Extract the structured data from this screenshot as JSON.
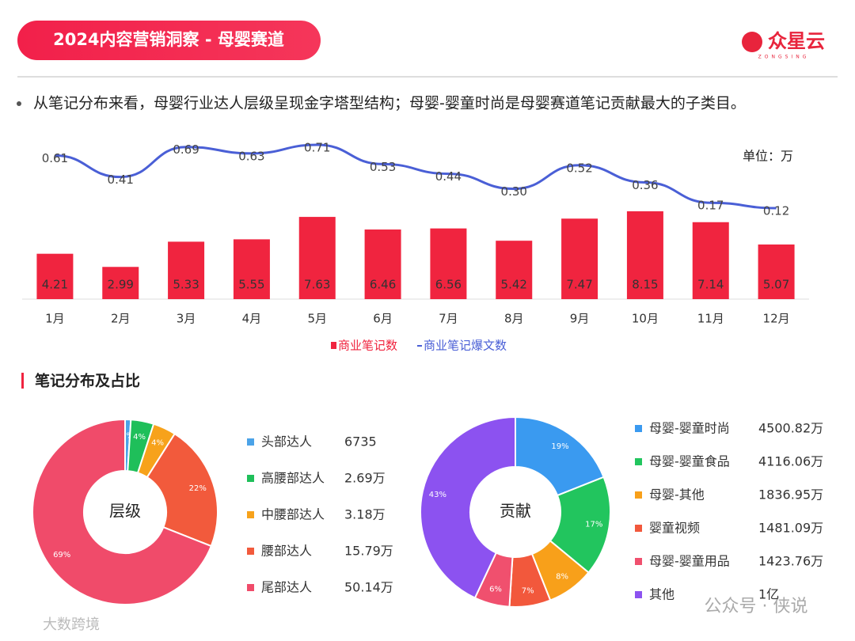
{
  "header": {
    "title": "2024内容营销洞察 - 母婴赛道",
    "logo": "众星云",
    "logo_sub": "ZONGSING"
  },
  "bullet": "从笔记分布来看，母婴行业达人层级呈现金字塔型结构；母婴-婴童时尚是母婴赛道笔记贡献最大的子类目。",
  "section_title": "笔记分布及占比",
  "watermarks": [
    "公众号 · 侠说",
    "大数跨境"
  ],
  "chart_data": [
    {
      "type": "bar",
      "unit_label": "单位：万",
      "categories": [
        "1月",
        "2月",
        "3月",
        "4月",
        "5月",
        "6月",
        "7月",
        "8月",
        "9月",
        "10月",
        "11月",
        "12月"
      ],
      "series": [
        {
          "name": "商业笔记数",
          "color": "#f0243f",
          "type": "bar",
          "values": [
            4.21,
            2.99,
            5.33,
            5.55,
            7.63,
            6.46,
            6.56,
            5.42,
            7.47,
            8.15,
            7.14,
            5.07
          ]
        },
        {
          "name": "商业笔记爆文数",
          "color": "#4a5fd6",
          "type": "line",
          "values": [
            0.61,
            0.41,
            0.69,
            0.63,
            0.71,
            0.53,
            0.44,
            0.3,
            0.52,
            0.36,
            0.17,
            0.12
          ],
          "value_labels": [
            "0.61",
            "0.41",
            "0.69",
            "0.63",
            "0.71",
            "0.53",
            "0.44",
            "0.30",
            "0.52",
            "0.36",
            "0.17",
            "0.12"
          ]
        }
      ]
    },
    {
      "type": "donut",
      "center_label": "层级",
      "categories": [
        "头部达人",
        "高腰部达人",
        "中腰部达人",
        "腰部达人",
        "尾部达人"
      ],
      "values": [
        1,
        4,
        4,
        22,
        69
      ],
      "value_labels": [
        "1%",
        "4%",
        "4%",
        "22%",
        "69%"
      ],
      "amounts": [
        "6735",
        "2.69万",
        "3.18万",
        "15.79万",
        "50.14万"
      ],
      "colors": [
        "#4ba3e8",
        "#1fbf5a",
        "#f7a21b",
        "#f25a3c",
        "#f04b6a"
      ]
    },
    {
      "type": "donut",
      "center_label": "贡献",
      "categories": [
        "母婴-婴童时尚",
        "母婴-婴童食品",
        "母婴-其他",
        "婴童视频",
        "母婴-婴童用品",
        "其他"
      ],
      "values": [
        19,
        17,
        8,
        7,
        6,
        43
      ],
      "value_labels": [
        "19%",
        "17%",
        "8%",
        "7%",
        "6%",
        "43%"
      ],
      "amounts": [
        "4500.82万",
        "4116.06万",
        "1836.95万",
        "1481.09万",
        "1423.76万",
        "1亿"
      ],
      "colors": [
        "#3a9af0",
        "#22c55e",
        "#f8a01a",
        "#f2583c",
        "#f0506e",
        "#8c52f0"
      ]
    }
  ]
}
